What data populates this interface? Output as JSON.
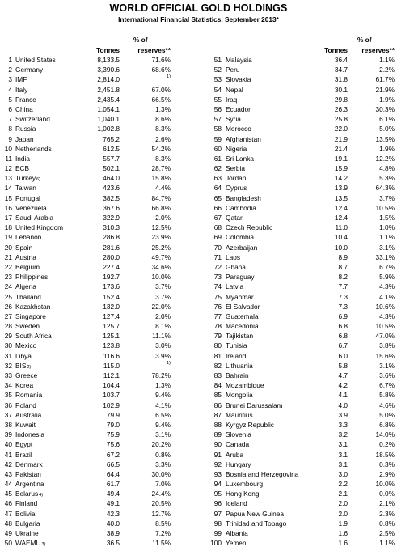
{
  "title": "WORLD OFFICIAL GOLD HOLDINGS",
  "subtitle": "International Financial Statistics, September 2013*",
  "headers": {
    "pct_line1": "% of",
    "tonnes": "Tonnes",
    "reserves": "reserves**"
  },
  "left": [
    {
      "rank": "1",
      "name": "United States",
      "sup": "",
      "tonnes": "8,133.5",
      "pct": "71.6%",
      "pct_sup": ""
    },
    {
      "rank": "2",
      "name": "Germany",
      "sup": "",
      "tonnes": "3,390.6",
      "pct": "68.6%",
      "pct_sup": ""
    },
    {
      "rank": "3",
      "name": "IMF",
      "sup": "",
      "tonnes": "2,814.0",
      "pct": "",
      "pct_sup": "1)"
    },
    {
      "rank": "4",
      "name": "Italy",
      "sup": "",
      "tonnes": "2,451.8",
      "pct": "67.0%",
      "pct_sup": ""
    },
    {
      "rank": "5",
      "name": "France",
      "sup": "",
      "tonnes": "2,435.4",
      "pct": "66.5%",
      "pct_sup": ""
    },
    {
      "rank": "6",
      "name": "China",
      "sup": "",
      "tonnes": "1,054.1",
      "pct": "1.3%",
      "pct_sup": ""
    },
    {
      "rank": "7",
      "name": "Switzerland",
      "sup": "",
      "tonnes": "1,040.1",
      "pct": "8.6%",
      "pct_sup": ""
    },
    {
      "rank": "8",
      "name": "Russia",
      "sup": "",
      "tonnes": "1,002.8",
      "pct": "8.3%",
      "pct_sup": ""
    },
    {
      "rank": "9",
      "name": "Japan",
      "sup": "",
      "tonnes": "765.2",
      "pct": "2.6%",
      "pct_sup": ""
    },
    {
      "rank": "10",
      "name": "Netherlands",
      "sup": "",
      "tonnes": "612.5",
      "pct": "54.2%",
      "pct_sup": ""
    },
    {
      "rank": "11",
      "name": "India",
      "sup": "",
      "tonnes": "557.7",
      "pct": "8.3%",
      "pct_sup": ""
    },
    {
      "rank": "12",
      "name": "ECB",
      "sup": "",
      "tonnes": "502.1",
      "pct": "28.7%",
      "pct_sup": ""
    },
    {
      "rank": "13",
      "name": "Turkey",
      "sup": "6)",
      "tonnes": "464.0",
      "pct": "15.8%",
      "pct_sup": ""
    },
    {
      "rank": "14",
      "name": "Taiwan",
      "sup": "",
      "tonnes": "423.6",
      "pct": "4.4%",
      "pct_sup": ""
    },
    {
      "rank": "15",
      "name": "Portugal",
      "sup": "",
      "tonnes": "382.5",
      "pct": "84.7%",
      "pct_sup": ""
    },
    {
      "rank": "16",
      "name": "Venezuela",
      "sup": "",
      "tonnes": "367.6",
      "pct": "66.8%",
      "pct_sup": ""
    },
    {
      "rank": "17",
      "name": "Saudi Arabia",
      "sup": "",
      "tonnes": "322.9",
      "pct": "2.0%",
      "pct_sup": ""
    },
    {
      "rank": "18",
      "name": "United Kingdom",
      "sup": "",
      "tonnes": "310.3",
      "pct": "12.5%",
      "pct_sup": ""
    },
    {
      "rank": "19",
      "name": "Lebanon",
      "sup": "",
      "tonnes": "286.8",
      "pct": "23.9%",
      "pct_sup": ""
    },
    {
      "rank": "20",
      "name": "Spain",
      "sup": "",
      "tonnes": "281.6",
      "pct": "25.2%",
      "pct_sup": ""
    },
    {
      "rank": "21",
      "name": "Austria",
      "sup": "",
      "tonnes": "280.0",
      "pct": "49.7%",
      "pct_sup": ""
    },
    {
      "rank": "22",
      "name": "Belgium",
      "sup": "",
      "tonnes": "227.4",
      "pct": "34.6%",
      "pct_sup": ""
    },
    {
      "rank": "23",
      "name": "Philippines",
      "sup": "",
      "tonnes": "192.7",
      "pct": "10.0%",
      "pct_sup": ""
    },
    {
      "rank": "24",
      "name": "Algeria",
      "sup": "",
      "tonnes": "173.6",
      "pct": "3.7%",
      "pct_sup": ""
    },
    {
      "rank": "25",
      "name": "Thailand",
      "sup": "",
      "tonnes": "152.4",
      "pct": "3.7%",
      "pct_sup": ""
    },
    {
      "rank": "26",
      "name": "Kazakhstan",
      "sup": "",
      "tonnes": "132.0",
      "pct": "22.0%",
      "pct_sup": ""
    },
    {
      "rank": "27",
      "name": "Singapore",
      "sup": "",
      "tonnes": "127.4",
      "pct": "2.0%",
      "pct_sup": ""
    },
    {
      "rank": "28",
      "name": "Sweden",
      "sup": "",
      "tonnes": "125.7",
      "pct": "8.1%",
      "pct_sup": ""
    },
    {
      "rank": "29",
      "name": "South Africa",
      "sup": "",
      "tonnes": "125.1",
      "pct": "11.1%",
      "pct_sup": ""
    },
    {
      "rank": "30",
      "name": "Mexico",
      "sup": "",
      "tonnes": "123.8",
      "pct": "3.0%",
      "pct_sup": ""
    },
    {
      "rank": "31",
      "name": "Libya",
      "sup": "",
      "tonnes": "116.6",
      "pct": "3.9%",
      "pct_sup": ""
    },
    {
      "rank": "32",
      "name": "BIS",
      "sup": "2)",
      "tonnes": "115.0",
      "pct": "",
      "pct_sup": "1)"
    },
    {
      "rank": "33",
      "name": "Greece",
      "sup": "",
      "tonnes": "112.1",
      "pct": "78.2%",
      "pct_sup": ""
    },
    {
      "rank": "34",
      "name": "Korea",
      "sup": "",
      "tonnes": "104.4",
      "pct": "1.3%",
      "pct_sup": ""
    },
    {
      "rank": "35",
      "name": "Romania",
      "sup": "",
      "tonnes": "103.7",
      "pct": "9.4%",
      "pct_sup": ""
    },
    {
      "rank": "36",
      "name": "Poland",
      "sup": "",
      "tonnes": "102.9",
      "pct": "4.1%",
      "pct_sup": ""
    },
    {
      "rank": "37",
      "name": "Australia",
      "sup": "",
      "tonnes": "79.9",
      "pct": "6.5%",
      "pct_sup": ""
    },
    {
      "rank": "38",
      "name": "Kuwait",
      "sup": "",
      "tonnes": "79.0",
      "pct": "9.4%",
      "pct_sup": ""
    },
    {
      "rank": "39",
      "name": "Indonesia",
      "sup": "",
      "tonnes": "75.9",
      "pct": "3.1%",
      "pct_sup": ""
    },
    {
      "rank": "40",
      "name": "Egypt",
      "sup": "",
      "tonnes": "75.6",
      "pct": "20.2%",
      "pct_sup": ""
    },
    {
      "rank": "41",
      "name": "Brazil",
      "sup": "",
      "tonnes": "67.2",
      "pct": "0.8%",
      "pct_sup": ""
    },
    {
      "rank": "42",
      "name": "Denmark",
      "sup": "",
      "tonnes": "66.5",
      "pct": "3.3%",
      "pct_sup": ""
    },
    {
      "rank": "43",
      "name": "Pakistan",
      "sup": "",
      "tonnes": "64.4",
      "pct": "30.0%",
      "pct_sup": ""
    },
    {
      "rank": "44",
      "name": "Argentina",
      "sup": "",
      "tonnes": "61.7",
      "pct": "7.0%",
      "pct_sup": ""
    },
    {
      "rank": "45",
      "name": "Belarus",
      "sup": "4)",
      "tonnes": "49.4",
      "pct": "24.4%",
      "pct_sup": ""
    },
    {
      "rank": "46",
      "name": "Finland",
      "sup": "",
      "tonnes": "49.1",
      "pct": "20.5%",
      "pct_sup": ""
    },
    {
      "rank": "47",
      "name": "Bolivia",
      "sup": "",
      "tonnes": "42.3",
      "pct": "12.7%",
      "pct_sup": ""
    },
    {
      "rank": "48",
      "name": "Bulgaria",
      "sup": "",
      "tonnes": "40.0",
      "pct": "8.5%",
      "pct_sup": ""
    },
    {
      "rank": "49",
      "name": "Ukraine",
      "sup": "",
      "tonnes": "38.9",
      "pct": "7.2%",
      "pct_sup": ""
    },
    {
      "rank": "50",
      "name": "WAEMU",
      "sup": "3)",
      "tonnes": "36.5",
      "pct": "11.5%",
      "pct_sup": ""
    }
  ],
  "right": [
    {
      "rank": "51",
      "name": "Malaysia",
      "sup": "",
      "tonnes": "36.4",
      "pct": "1.1%",
      "pct_sup": ""
    },
    {
      "rank": "52",
      "name": "Peru",
      "sup": "",
      "tonnes": "34.7",
      "pct": "2.2%",
      "pct_sup": ""
    },
    {
      "rank": "53",
      "name": "Slovakia",
      "sup": "",
      "tonnes": "31.8",
      "pct": "61.7%",
      "pct_sup": ""
    },
    {
      "rank": "54",
      "name": "Nepal",
      "sup": "",
      "tonnes": "30.1",
      "pct": "21.9%",
      "pct_sup": ""
    },
    {
      "rank": "55",
      "name": "Iraq",
      "sup": "",
      "tonnes": "29.8",
      "pct": "1.9%",
      "pct_sup": ""
    },
    {
      "rank": "56",
      "name": "Ecuador",
      "sup": "",
      "tonnes": "26.3",
      "pct": "30.3%",
      "pct_sup": ""
    },
    {
      "rank": "57",
      "name": "Syria",
      "sup": "",
      "tonnes": "25.8",
      "pct": "6.1%",
      "pct_sup": ""
    },
    {
      "rank": "58",
      "name": "Morocco",
      "sup": "",
      "tonnes": "22.0",
      "pct": "5.0%",
      "pct_sup": ""
    },
    {
      "rank": "59",
      "name": "Afghanistan",
      "sup": "",
      "tonnes": "21.9",
      "pct": "13.5%",
      "pct_sup": ""
    },
    {
      "rank": "60",
      "name": "Nigeria",
      "sup": "",
      "tonnes": "21.4",
      "pct": "1.9%",
      "pct_sup": ""
    },
    {
      "rank": "61",
      "name": "Sri Lanka",
      "sup": "",
      "tonnes": "19.1",
      "pct": "12.2%",
      "pct_sup": ""
    },
    {
      "rank": "62",
      "name": "Serbia",
      "sup": "",
      "tonnes": "15.9",
      "pct": "4.8%",
      "pct_sup": ""
    },
    {
      "rank": "63",
      "name": "Jordan",
      "sup": "",
      "tonnes": "14.2",
      "pct": "5.3%",
      "pct_sup": ""
    },
    {
      "rank": "64",
      "name": "Cyprus",
      "sup": "",
      "tonnes": "13.9",
      "pct": "64.3%",
      "pct_sup": ""
    },
    {
      "rank": "65",
      "name": "Bangladesh",
      "sup": "",
      "tonnes": "13.5",
      "pct": "3.7%",
      "pct_sup": ""
    },
    {
      "rank": "66",
      "name": "Cambodia",
      "sup": "",
      "tonnes": "12.4",
      "pct": "10.5%",
      "pct_sup": ""
    },
    {
      "rank": "67",
      "name": "Qatar",
      "sup": "",
      "tonnes": "12.4",
      "pct": "1.5%",
      "pct_sup": ""
    },
    {
      "rank": "68",
      "name": "Czech Republic",
      "sup": "",
      "tonnes": "11.0",
      "pct": "1.0%",
      "pct_sup": ""
    },
    {
      "rank": "69",
      "name": "Colombia",
      "sup": "",
      "tonnes": "10.4",
      "pct": "1.1%",
      "pct_sup": ""
    },
    {
      "rank": "70",
      "name": "Azerbaijan",
      "sup": "",
      "tonnes": "10.0",
      "pct": "3.1%",
      "pct_sup": ""
    },
    {
      "rank": "71",
      "name": "Laos",
      "sup": "",
      "tonnes": "8.9",
      "pct": "33.1%",
      "pct_sup": ""
    },
    {
      "rank": "72",
      "name": "Ghana",
      "sup": "",
      "tonnes": "8.7",
      "pct": "6.7%",
      "pct_sup": ""
    },
    {
      "rank": "73",
      "name": "Paraguay",
      "sup": "",
      "tonnes": "8.2",
      "pct": "5.9%",
      "pct_sup": ""
    },
    {
      "rank": "74",
      "name": "Latvia",
      "sup": "",
      "tonnes": "7.7",
      "pct": "4.3%",
      "pct_sup": ""
    },
    {
      "rank": "75",
      "name": "Myanmar",
      "sup": "",
      "tonnes": "7.3",
      "pct": "4.1%",
      "pct_sup": ""
    },
    {
      "rank": "76",
      "name": "El Salvador",
      "sup": "",
      "tonnes": "7.3",
      "pct": "10.6%",
      "pct_sup": ""
    },
    {
      "rank": "77",
      "name": "Guatemala",
      "sup": "",
      "tonnes": "6.9",
      "pct": "4.3%",
      "pct_sup": ""
    },
    {
      "rank": "78",
      "name": "Macedonia",
      "sup": "",
      "tonnes": "6.8",
      "pct": "10.5%",
      "pct_sup": ""
    },
    {
      "rank": "79",
      "name": "Tajikistan",
      "sup": "",
      "tonnes": "6.8",
      "pct": "47.0%",
      "pct_sup": ""
    },
    {
      "rank": "80",
      "name": "Tunisia",
      "sup": "",
      "tonnes": "6.7",
      "pct": "3.8%",
      "pct_sup": ""
    },
    {
      "rank": "81",
      "name": "Ireland",
      "sup": "",
      "tonnes": "6.0",
      "pct": "15.6%",
      "pct_sup": ""
    },
    {
      "rank": "82",
      "name": "Lithuania",
      "sup": "",
      "tonnes": "5.8",
      "pct": "3.1%",
      "pct_sup": ""
    },
    {
      "rank": "83",
      "name": "Bahrain",
      "sup": "",
      "tonnes": "4.7",
      "pct": "3.6%",
      "pct_sup": ""
    },
    {
      "rank": "84",
      "name": "Mozambique",
      "sup": "",
      "tonnes": "4.2",
      "pct": "6.7%",
      "pct_sup": ""
    },
    {
      "rank": "85",
      "name": "Mongolia",
      "sup": "",
      "tonnes": "4.1",
      "pct": "5.8%",
      "pct_sup": ""
    },
    {
      "rank": "86",
      "name": "Brunei Darussalam",
      "sup": "",
      "tonnes": "4.0",
      "pct": "4.6%",
      "pct_sup": ""
    },
    {
      "rank": "87",
      "name": "Mauritius",
      "sup": "",
      "tonnes": "3.9",
      "pct": "5.0%",
      "pct_sup": ""
    },
    {
      "rank": "88",
      "name": "Kyrgyz Republic",
      "sup": "",
      "tonnes": "3.3",
      "pct": "6.8%",
      "pct_sup": ""
    },
    {
      "rank": "89",
      "name": "Slovenia",
      "sup": "",
      "tonnes": "3.2",
      "pct": "14.0%",
      "pct_sup": ""
    },
    {
      "rank": "90",
      "name": "Canada",
      "sup": "",
      "tonnes": "3.1",
      "pct": "0.2%",
      "pct_sup": ""
    },
    {
      "rank": "91",
      "name": "Aruba",
      "sup": "",
      "tonnes": "3.1",
      "pct": "18.5%",
      "pct_sup": ""
    },
    {
      "rank": "92",
      "name": "Hungary",
      "sup": "",
      "tonnes": "3.1",
      "pct": "0.3%",
      "pct_sup": ""
    },
    {
      "rank": "93",
      "name": "Bosnia and Herzegovina",
      "sup": "",
      "tonnes": "3.0",
      "pct": "2.9%",
      "pct_sup": ""
    },
    {
      "rank": "94",
      "name": "Luxembourg",
      "sup": "",
      "tonnes": "2.2",
      "pct": "10.0%",
      "pct_sup": ""
    },
    {
      "rank": "95",
      "name": "Hong Kong",
      "sup": "",
      "tonnes": "2.1",
      "pct": "0.0%",
      "pct_sup": ""
    },
    {
      "rank": "96",
      "name": "Iceland",
      "sup": "",
      "tonnes": "2.0",
      "pct": "2.1%",
      "pct_sup": ""
    },
    {
      "rank": "97",
      "name": "Papua New Guinea",
      "sup": "",
      "tonnes": "2.0",
      "pct": "2.3%",
      "pct_sup": ""
    },
    {
      "rank": "98",
      "name": "Trinidad and Tobago",
      "sup": "",
      "tonnes": "1.9",
      "pct": "0.8%",
      "pct_sup": ""
    },
    {
      "rank": "99",
      "name": "Albania",
      "sup": "",
      "tonnes": "1.6",
      "pct": "2.5%",
      "pct_sup": ""
    },
    {
      "rank": "100",
      "name": "Yemen",
      "sup": "",
      "tonnes": "1.6",
      "pct": "1.1%",
      "pct_sup": ""
    }
  ]
}
